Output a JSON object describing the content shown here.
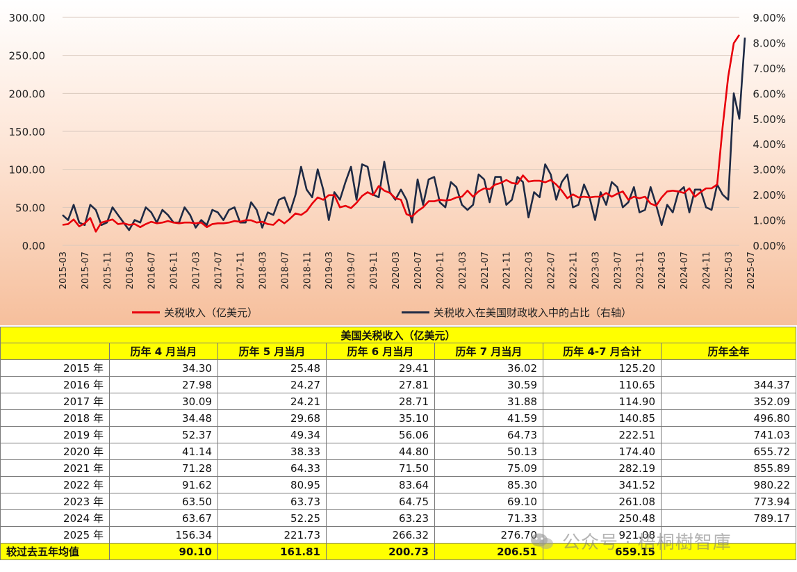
{
  "chart_data": {
    "type": "line",
    "left_axis": {
      "ticks": [
        "300.00",
        "250.00",
        "200.00",
        "150.00",
        "100.00",
        "50.00",
        "0.00"
      ],
      "ylim": [
        0,
        300
      ]
    },
    "right_axis": {
      "ticks": [
        "9.00%",
        "8.00%",
        "7.00%",
        "6.00%",
        "5.00%",
        "4.00%",
        "3.00%",
        "2.00%",
        "1.00%",
        "0.00%"
      ],
      "ylim": [
        0,
        9
      ]
    },
    "x_tick_labels": [
      "2015-03",
      "2015-07",
      "2015-11",
      "2016-03",
      "2016-07",
      "2016-11",
      "2017-03",
      "2017-07",
      "2017-11",
      "2018-03",
      "2018-07",
      "2018-11",
      "2019-03",
      "2019-07",
      "2019-11",
      "2020-03",
      "2020-07",
      "2020-11",
      "2021-03",
      "2021-07",
      "2021-11",
      "2022-03",
      "2022-07",
      "2022-11",
      "2023-03",
      "2023-07",
      "2023-11",
      "2024-03",
      "2024-07",
      "2024-11",
      "2025-03",
      "2025-07"
    ],
    "start_month": "2015-01",
    "series": [
      {
        "name": "关税收入（亿美元）",
        "axis": "left",
        "color": "#e8000b",
        "values": [
          25,
          32,
          27,
          28,
          34,
          25,
          29,
          36,
          18,
          30,
          32,
          34,
          28,
          29,
          27,
          28,
          24,
          28,
          31,
          29,
          30,
          32,
          30,
          29,
          30,
          30,
          29,
          30,
          24,
          28,
          29,
          29,
          30,
          32,
          31,
          33,
          33,
          30,
          31,
          28,
          27,
          34,
          29,
          35,
          42,
          40,
          45,
          55,
          63,
          60,
          66,
          66,
          50,
          52,
          49,
          56,
          65,
          70,
          66,
          78,
          72,
          69,
          62,
          60,
          41,
          38,
          45,
          50,
          58,
          58,
          60,
          59,
          60,
          63,
          64,
          72,
          64,
          71,
          75,
          74,
          80,
          82,
          86,
          82,
          81,
          92,
          84,
          85,
          85,
          83,
          86,
          80,
          72,
          62,
          67,
          63,
          64,
          63,
          64,
          64,
          69,
          64,
          68,
          71,
          60,
          64,
          62,
          64,
          55,
          52,
          63,
          71,
          72,
          71,
          69,
          75,
          64,
          70,
          75,
          75,
          80,
          156,
          222,
          266,
          277
        ]
      },
      {
        "name": "关税收入在美国财政收入中的占比（右轴）",
        "axis": "right",
        "color": "#1e2a44",
        "values": [
          1.1,
          0.8,
          1.2,
          1.0,
          1.6,
          0.9,
          0.8,
          1.6,
          1.4,
          0.8,
          0.9,
          1.5,
          1.2,
          0.9,
          0.6,
          1.0,
          0.9,
          1.5,
          1.3,
          0.9,
          1.4,
          1.2,
          0.9,
          0.9,
          1.5,
          1.2,
          0.7,
          1.0,
          0.8,
          1.4,
          1.3,
          1.0,
          1.4,
          1.5,
          0.9,
          0.9,
          1.7,
          1.4,
          0.7,
          1.3,
          1.2,
          1.8,
          1.9,
          1.3,
          2.0,
          3.1,
          2.2,
          1.9,
          3.0,
          2.2,
          1.0,
          2.1,
          1.8,
          2.5,
          3.1,
          1.8,
          3.2,
          3.1,
          2.0,
          1.9,
          3.3,
          2.1,
          1.8,
          2.2,
          1.8,
          0.9,
          2.6,
          1.6,
          2.6,
          2.7,
          1.7,
          1.5,
          2.5,
          2.3,
          1.6,
          1.4,
          1.6,
          2.8,
          2.6,
          1.7,
          2.7,
          2.7,
          1.6,
          1.8,
          2.7,
          2.5,
          1.1,
          2.1,
          1.9,
          3.2,
          2.8,
          1.8,
          2.5,
          2.8,
          1.5,
          1.6,
          2.4,
          1.9,
          1.0,
          2.1,
          1.6,
          2.5,
          2.3,
          1.5,
          1.7,
          2.3,
          1.3,
          1.4,
          2.3,
          1.6,
          0.8,
          1.6,
          1.3,
          2.1,
          2.3,
          1.3,
          2.2,
          2.2,
          1.5,
          1.4,
          2.4,
          2.0,
          1.8,
          6.0,
          5.0,
          8.2
        ]
      }
    ]
  },
  "legend": {
    "item1": "关税收入（亿美元）",
    "item2": "关税收入在美国财政收入中的占比（右轴）"
  },
  "table": {
    "title": "美国关税收入（亿美元）",
    "headers": [
      "",
      "历年 4 月当月",
      "历年 5 月当月",
      "历年 6 月当月",
      "历年 7 月当月",
      "历年 4-7 月合计",
      "历年全年"
    ],
    "rows": [
      {
        "year": "2015 年",
        "cells": [
          "34.30",
          "25.48",
          "29.41",
          "36.02",
          "125.20",
          ""
        ]
      },
      {
        "year": "2016 年",
        "cells": [
          "27.98",
          "24.27",
          "27.81",
          "30.59",
          "110.65",
          "344.37"
        ]
      },
      {
        "year": "2017 年",
        "cells": [
          "30.09",
          "24.21",
          "28.71",
          "31.88",
          "114.90",
          "352.09"
        ]
      },
      {
        "year": "2018 年",
        "cells": [
          "34.48",
          "29.68",
          "35.10",
          "41.59",
          "140.85",
          "496.80"
        ]
      },
      {
        "year": "2019 年",
        "cells": [
          "52.37",
          "49.34",
          "56.06",
          "64.73",
          "222.51",
          "741.03"
        ]
      },
      {
        "year": "2020 年",
        "cells": [
          "41.14",
          "38.33",
          "44.80",
          "50.13",
          "174.40",
          "655.72"
        ]
      },
      {
        "year": "2021 年",
        "cells": [
          "71.28",
          "64.33",
          "71.50",
          "75.09",
          "282.19",
          "855.89"
        ]
      },
      {
        "year": "2022 年",
        "cells": [
          "91.62",
          "80.95",
          "83.64",
          "85.30",
          "341.52",
          "980.22"
        ]
      },
      {
        "year": "2023 年",
        "cells": [
          "63.50",
          "63.73",
          "64.75",
          "69.10",
          "261.08",
          "773.94"
        ]
      },
      {
        "year": "2024 年",
        "cells": [
          "63.67",
          "52.25",
          "63.23",
          "71.33",
          "250.48",
          "789.17"
        ]
      },
      {
        "year": "2025 年",
        "cells": [
          "156.34",
          "221.73",
          "266.32",
          "276.70",
          "921.08",
          ""
        ]
      }
    ],
    "average_row": {
      "label": "较过去五年均值",
      "cells": [
        "90.10",
        "161.81",
        "200.73",
        "206.51",
        "659.15",
        ""
      ]
    }
  },
  "watermark": {
    "text": "公众号 · 梧桐樹智庫"
  }
}
